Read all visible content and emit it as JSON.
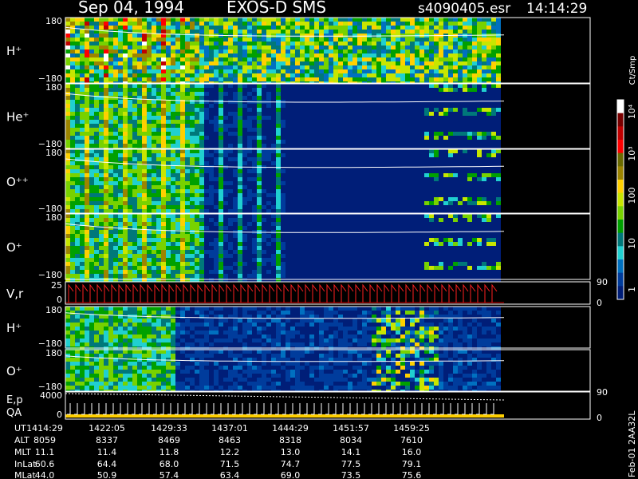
{
  "header": {
    "date": "Sep 04, 1994",
    "instrument": "EXOS-D SMS",
    "file": "s4090405.esr",
    "time": "14:14:29"
  },
  "colorbar": {
    "unit": "Ct/Smp",
    "tick_labels": [
      "10⁴",
      "10³",
      "100",
      "10",
      "1"
    ],
    "colors": [
      "#ffffff",
      "#7a0000",
      "#c00000",
      "#ff0000",
      "#6b6b00",
      "#9c8400",
      "#ffd000",
      "#c8e600",
      "#78d200",
      "#00a000",
      "#00787a",
      "#20d0d0",
      "#0070c0",
      "#003c9c",
      "#001e78"
    ]
  },
  "panels": [
    {
      "id": "h-plus",
      "label": "H⁺",
      "ytop": "180",
      "ybot": "−180",
      "kind": "spec"
    },
    {
      "id": "he-plus",
      "label": "He⁺",
      "ytop": "180",
      "ybot": "−180",
      "kind": "spec"
    },
    {
      "id": "o-pp",
      "label": "O⁺⁺",
      "ytop": "180",
      "ybot": "−180",
      "kind": "spec"
    },
    {
      "id": "o-plus",
      "label": "O⁺",
      "ytop": "180",
      "ybot": "−180",
      "kind": "spec"
    },
    {
      "id": "vr",
      "label": "V,r",
      "ytop": "25",
      "ybot": "0",
      "right_top": "90",
      "right_bot": "0",
      "kind": "line"
    },
    {
      "id": "h-plus-2",
      "label": "H⁺",
      "ytop": "180",
      "ybot": "−180",
      "kind": "spec"
    },
    {
      "id": "o-plus-2",
      "label": "O⁺",
      "ytop": "180",
      "ybot": "−180",
      "kind": "spec"
    },
    {
      "id": "ep-qa",
      "label_top": "E,p",
      "label_bot": "QA",
      "ytop": "4000",
      "ybot": "0",
      "right_top": "90",
      "right_bot": "0",
      "kind": "line2"
    }
  ],
  "ephemeris": {
    "row_labels": [
      "UT",
      "ALT",
      "MLT",
      "InLat",
      "MLat"
    ],
    "columns": [
      [
        "1414:29",
        "8059",
        "11.1",
        "60.6",
        "44.0"
      ],
      [
        "1422:05",
        "8337",
        "11.4",
        "64.4",
        "50.9"
      ],
      [
        "1429:33",
        "8469",
        "11.8",
        "68.0",
        "57.4"
      ],
      [
        "1437:01",
        "8463",
        "12.2",
        "71.5",
        "63.4"
      ],
      [
        "1444:29",
        "8318",
        "13.0",
        "74.7",
        "69.0"
      ],
      [
        "1451:57",
        "8034",
        "14.1",
        "77.5",
        "73.5"
      ],
      [
        "1459:25",
        "7610",
        "16.0",
        "79.1",
        "75.6"
      ]
    ]
  },
  "footer_code": "Feb-01 2AA32L",
  "chart_data": {
    "type": "heatmap",
    "title": "Sep 04, 1994   EXOS-D SMS   s4090405.esr   14:14:29",
    "x_ticks_ut": [
      "1414:29",
      "1422:05",
      "1429:33",
      "1437:01",
      "1444:29",
      "1451:57",
      "1459:25"
    ],
    "panels": [
      "H+",
      "He+",
      "O++",
      "O+",
      "V,r",
      "H+",
      "O+",
      "E,p / QA"
    ],
    "y_range_spectrogram": [
      -180,
      180
    ],
    "colorbar_range_counts": [
      1,
      10000
    ],
    "colorbar_scale": "log"
  }
}
